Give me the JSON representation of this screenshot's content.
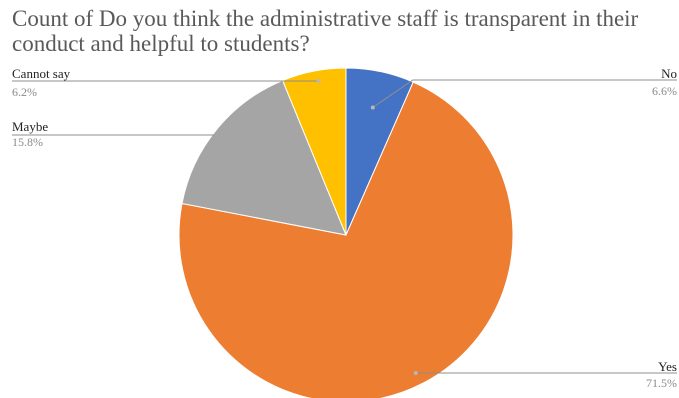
{
  "chart_data": {
    "type": "pie",
    "title": "Count of Do you think the administrative staff is transparent in their conduct and helpful to students?",
    "slices": [
      {
        "label": "No",
        "value": 6.6,
        "display": "6.6%",
        "color": "#4472C4"
      },
      {
        "label": "Yes",
        "value": 71.5,
        "display": "71.5%",
        "color": "#ED7D31"
      },
      {
        "label": "Maybe",
        "value": 15.8,
        "display": "15.8%",
        "color": "#A5A5A5"
      },
      {
        "label": "Cannot say",
        "value": 6.2,
        "display": "6.2%",
        "color": "#FFC000"
      }
    ],
    "start_angle": "12 o'clock",
    "direction": "clockwise",
    "legend": "none"
  }
}
